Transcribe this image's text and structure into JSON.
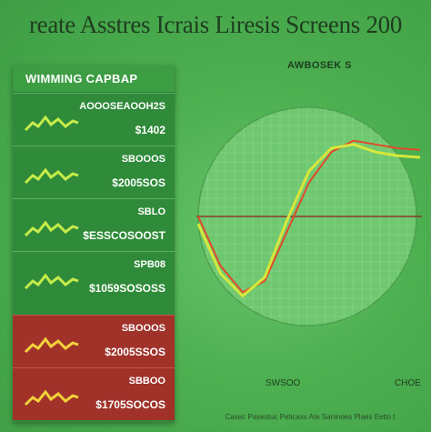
{
  "title": "reate Asstres Icrais Liresis Screens 200",
  "panel": {
    "header": "WIMMING CAPBAP",
    "rows": [
      {
        "value": "$1402",
        "label": "AOOOSEAOOH2S",
        "trend": "up",
        "color": "#2f8b39"
      },
      {
        "value": "$2005SOS",
        "label": "SBOOOS",
        "trend": "up",
        "color": "#2f8b39"
      },
      {
        "value": "$ESSCOSOOST",
        "label": "SBLO",
        "trend": "up",
        "color": "#2f8b39"
      },
      {
        "value": "$1059SOSOSS",
        "label": "SPB08",
        "trend": "up",
        "color": "#2f8b39"
      },
      {
        "value": "$2005SSOS",
        "label": "SBOOOS",
        "trend": "up",
        "color": "#a0322a"
      },
      {
        "value": "$1705SOCOS",
        "label": "SBBOO",
        "trend": "up",
        "color": "#a0322a"
      }
    ]
  },
  "chart_data": {
    "type": "line",
    "title": "",
    "legend_label": "AWBOSEK S",
    "xlabel": "",
    "ylabel": "",
    "x_tick_labels": [
      "SWSOO",
      "CHOE"
    ],
    "baseline": 0,
    "ylim": [
      -1.2,
      1.2
    ],
    "xlim": [
      0,
      10
    ],
    "series": [
      {
        "name": "",
        "color": "#e04a2a",
        "x": [
          0,
          1,
          2,
          3,
          4,
          5,
          6,
          7,
          8,
          9,
          10
        ],
        "y": [
          0,
          -0.65,
          -1.0,
          -0.85,
          -0.2,
          0.45,
          0.85,
          1.0,
          0.95,
          0.9,
          0.88
        ]
      },
      {
        "name": "",
        "color": "#d6e83a",
        "x": [
          0,
          1,
          2,
          3,
          4,
          5,
          6,
          7,
          8,
          9,
          10
        ],
        "y": [
          -0.1,
          -0.75,
          -1.05,
          -0.8,
          -0.05,
          0.6,
          0.9,
          0.95,
          0.85,
          0.8,
          0.78
        ]
      }
    ],
    "grid": true
  },
  "footer": "Caxec Paxestuc Peticaxs Ate Saninoes Plaes Eetlo t"
}
